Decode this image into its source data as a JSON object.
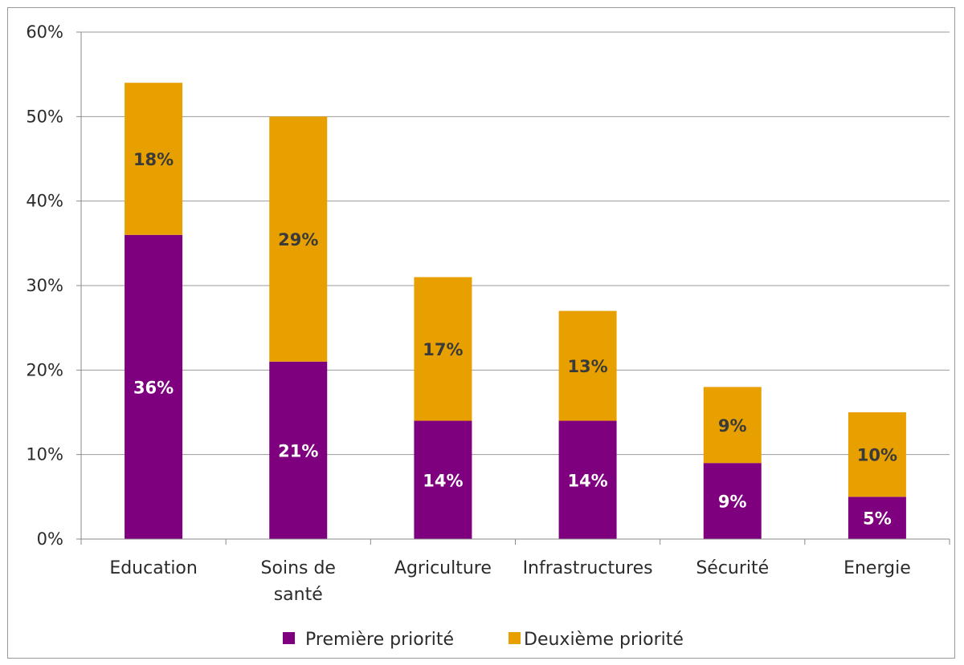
{
  "chart_data": {
    "type": "bar",
    "stacked": true,
    "categories": [
      "Education",
      "Soins de santé",
      "Agriculture",
      "Infrastructures",
      "Sécurité",
      "Energie"
    ],
    "category_lines": [
      [
        "Education"
      ],
      [
        "Soins de",
        "santé"
      ],
      [
        "Agriculture"
      ],
      [
        "Infrastructures"
      ],
      [
        "Sécurité"
      ],
      [
        "Energie"
      ]
    ],
    "series": [
      {
        "name": "Première priorité",
        "values": [
          36,
          21,
          14,
          14,
          9,
          5
        ],
        "labels": [
          "36%",
          "21%",
          "14%",
          "14%",
          "9%",
          "5%"
        ],
        "color": "#7f007f",
        "label_color": "#ffffff"
      },
      {
        "name": "Deuxième priorité",
        "values": [
          18,
          29,
          17,
          13,
          9,
          10
        ],
        "labels": [
          "18%",
          "29%",
          "17%",
          "13%",
          "9%",
          "10%"
        ],
        "color": "#e8a000",
        "label_color": "#3a3a3a"
      }
    ],
    "ylim": [
      0,
      60
    ],
    "yticks": [
      0,
      10,
      20,
      30,
      40,
      50,
      60
    ],
    "ytick_labels": [
      "0%",
      "10%",
      "20%",
      "30%",
      "40%",
      "50%",
      "60%"
    ],
    "grid": true,
    "legend_position": "bottom",
    "xlabel": "",
    "ylabel": ""
  }
}
